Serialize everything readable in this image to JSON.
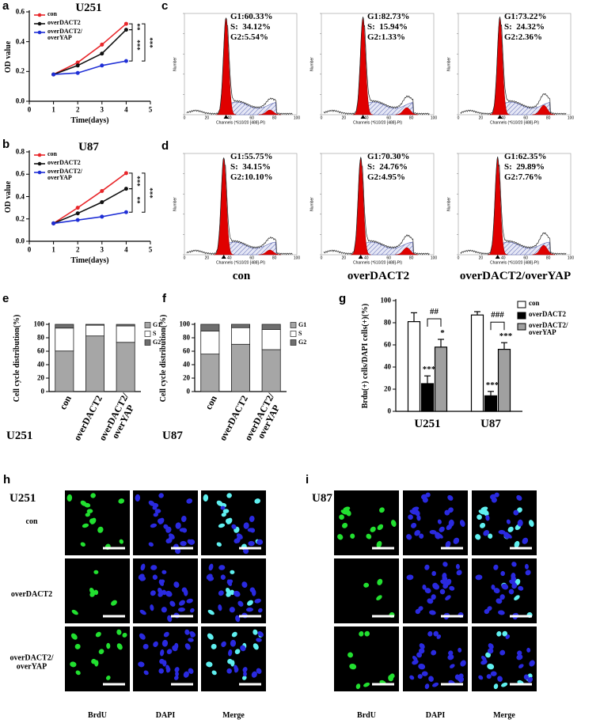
{
  "chart_data": [
    {
      "type": "line",
      "panel": "a",
      "title": "U251",
      "x_label": "Time(days)",
      "y_label": "OD value",
      "x": [
        1,
        2,
        3,
        4
      ],
      "xlim": [
        0,
        5
      ],
      "xticks": [
        0,
        1,
        2,
        3,
        4,
        5
      ],
      "ylim": [
        0,
        0.6
      ],
      "yticks": [
        {
          "value": 0,
          "label": "0.0"
        },
        {
          "value": 0.2,
          "label": "0.2"
        },
        {
          "value": 0.4,
          "label": "0.4"
        },
        {
          "value": 0.6,
          "label": "0.6"
        }
      ],
      "series": [
        {
          "name": "con",
          "color": "#e8262a",
          "values": [
            0.18,
            0.26,
            0.38,
            0.52
          ]
        },
        {
          "name": "overDACT2",
          "color": "#111111",
          "values": [
            0.18,
            0.24,
            0.32,
            0.48
          ]
        },
        {
          "name": "overDACT2/\noverYAP",
          "color": "#1f2fd6",
          "values": [
            0.18,
            0.19,
            0.24,
            0.27
          ]
        }
      ],
      "annotations": [
        "**",
        "***",
        "***"
      ]
    },
    {
      "type": "line",
      "panel": "b",
      "title": "U87",
      "x_label": "Time(days)",
      "y_label": "OD value",
      "x": [
        1,
        2,
        3,
        4
      ],
      "xlim": [
        0,
        5
      ],
      "xticks": [
        0,
        1,
        2,
        3,
        4,
        5
      ],
      "ylim": [
        0,
        0.8
      ],
      "yticks": [
        {
          "value": 0,
          "label": "0.0"
        },
        {
          "value": 0.2,
          "label": "0.2"
        },
        {
          "value": 0.4,
          "label": "0.4"
        },
        {
          "value": 0.6,
          "label": "0.6"
        },
        {
          "value": 0.8,
          "label": "0.8"
        }
      ],
      "series": [
        {
          "name": "con",
          "color": "#e8262a",
          "values": [
            0.16,
            0.3,
            0.45,
            0.61
          ]
        },
        {
          "name": "overDACT2",
          "color": "#111111",
          "values": [
            0.16,
            0.25,
            0.35,
            0.47
          ]
        },
        {
          "name": "overDACT2/\noverYAP",
          "color": "#1f2fd6",
          "values": [
            0.16,
            0.19,
            0.22,
            0.26
          ]
        }
      ],
      "annotations": [
        "***",
        "**",
        "***"
      ]
    },
    {
      "type": "stacked_bar",
      "panel": "e",
      "title": "U251",
      "y_label": "Cell cycle distribution(%)",
      "categories": [
        "con",
        "overDACT2",
        "overDACT2/\noverYAP"
      ],
      "ylim": [
        0,
        100
      ],
      "yticks": [
        0,
        20,
        40,
        60,
        80,
        100
      ],
      "series": [
        {
          "name": "G1",
          "color": "#a6a6a6",
          "values": [
            60.33,
            82.73,
            73.22
          ]
        },
        {
          "name": "S",
          "color": "#ffffff",
          "values": [
            34.12,
            15.94,
            24.32
          ]
        },
        {
          "name": "G2",
          "color": "#6e6e6e",
          "values": [
            5.54,
            1.33,
            2.36
          ]
        }
      ]
    },
    {
      "type": "stacked_bar",
      "panel": "f",
      "title": "U87",
      "y_label": "Cell cycle distribution(%)",
      "categories": [
        "con",
        "overDACT2",
        "overDACT2/\noverYAP"
      ],
      "ylim": [
        0,
        100
      ],
      "yticks": [
        0,
        20,
        40,
        60,
        80,
        100
      ],
      "series": [
        {
          "name": "G1",
          "color": "#a6a6a6",
          "values": [
            55.75,
            70.3,
            62.35
          ]
        },
        {
          "name": "S",
          "color": "#ffffff",
          "values": [
            34.15,
            24.76,
            29.89
          ]
        },
        {
          "name": "G2",
          "color": "#6e6e6e",
          "values": [
            10.1,
            4.95,
            7.76
          ]
        }
      ]
    },
    {
      "type": "bar",
      "panel": "g",
      "y_label": "Brdu(+) cells/DAPI cells(+)(%)",
      "categories": [
        "U251",
        "U87"
      ],
      "ylim": [
        0,
        100
      ],
      "yticks": [
        0,
        20,
        40,
        60,
        80,
        100
      ],
      "series": [
        {
          "name": "con",
          "color": "#ffffff",
          "values": [
            81,
            87
          ],
          "errors": [
            8,
            3
          ]
        },
        {
          "name": "overDACT2",
          "color": "#000000",
          "values": [
            25,
            14
          ],
          "errors": [
            7,
            4
          ],
          "significance": [
            "***",
            "***"
          ]
        },
        {
          "name": "overDACT2/\noverYAP",
          "color": "#a0a0a0",
          "values": [
            58,
            56
          ],
          "errors": [
            7,
            6
          ],
          "significance": [
            "*",
            "***"
          ]
        }
      ],
      "comparisons": [
        "##",
        "###"
      ]
    }
  ],
  "flow_cytometry": {
    "panels": [
      {
        "label": "c",
        "plots": [
          {
            "lines": [
              "G1:60.33%",
              "S:  34.12%",
              "G2:5.54%"
            ]
          },
          {
            "lines": [
              "G1:82.73%",
              "S:  15.94%",
              "G2:1.33%"
            ]
          },
          {
            "lines": [
              "G1:73.22%",
              "S:  24.32%",
              "G2:2.36%"
            ]
          }
        ]
      },
      {
        "label": "d",
        "plots": [
          {
            "lines": [
              "G1:55.75%",
              "S:  34.15%",
              "G2:10.10%"
            ]
          },
          {
            "lines": [
              "G1:70.30%",
              "S:  24.76%",
              "G2:4.95%"
            ]
          },
          {
            "lines": [
              "G1:62.35%",
              "S:  29.89%",
              "G2:7.76%"
            ]
          }
        ]
      }
    ],
    "y_axis_label": "Number",
    "x_axis_label": "Channels (*610/20 [488]-PI)",
    "x_tick_labels": [
      "0",
      "20",
      "40",
      "60",
      "80",
      "100"
    ],
    "column_labels": [
      "con",
      "overDACT2",
      "overDACT2/overYAP"
    ]
  },
  "microscopy": {
    "panels": [
      {
        "label": "h",
        "cell_line": "U251"
      },
      {
        "label": "i",
        "cell_line": "U87"
      }
    ],
    "row_labels": [
      "con",
      "overDACT2",
      "overDACT2/\noverYAP"
    ],
    "column_labels": [
      "BrdU",
      "DAPI",
      "Merge"
    ]
  }
}
